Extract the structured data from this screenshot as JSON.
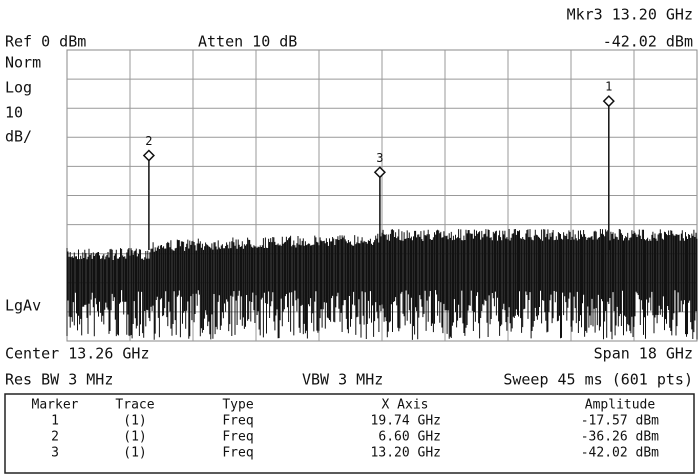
{
  "header": {
    "marker_readout": "Mkr3  13.20 GHz",
    "marker_amplitude": "-42.02 dBm",
    "reference": "Ref 0 dBm",
    "attenuation": "Atten 10 dB"
  },
  "left_labels": {
    "mode": "Norm",
    "scale_type": "Log",
    "scale": "10",
    "scale_unit": "dB/",
    "detector": "LgAv"
  },
  "footer": {
    "center": "Center 13.26 GHz",
    "span": "Span 18 GHz",
    "rbw": "Res BW 3 MHz",
    "vbw": "VBW 3 MHz",
    "sweep": "Sweep 45 ms (601 pts)"
  },
  "table": {
    "columns": [
      "Marker",
      "Trace",
      "Type",
      "X Axis",
      "Amplitude"
    ],
    "rows": [
      [
        "1",
        "(1)",
        "Freq",
        "19.74 GHz",
        "-17.57 dBm"
      ],
      [
        "2",
        "(1)",
        "Freq",
        "6.60 GHz",
        "-36.26 dBm"
      ],
      [
        "3",
        "(1)",
        "Freq",
        "13.20 GHz",
        "-42.02 dBm"
      ]
    ]
  }
}
